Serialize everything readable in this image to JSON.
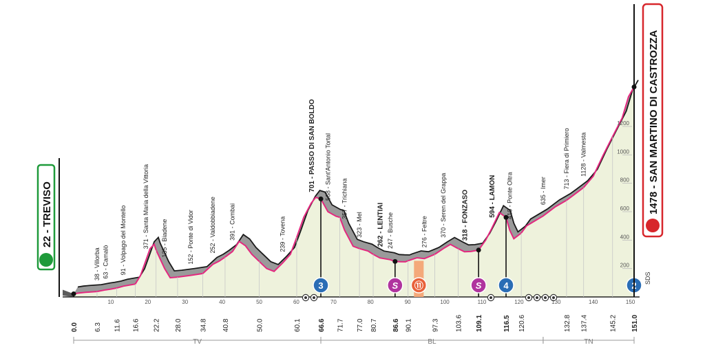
{
  "chart_data": {
    "type": "area",
    "xlabel": "",
    "ylabel": "",
    "xlim": [
      0,
      151
    ],
    "ylim": [
      0,
      1500
    ],
    "start": {
      "name": "TREVISO",
      "label": "22 - TREVISO",
      "km": 0.0,
      "altitude": 22
    },
    "finish": {
      "name": "SAN MARTINO DI CASTROZZA",
      "label": "1478 - SAN MARTINO DI CASTROZZA",
      "km": 151.0,
      "altitude": 1478
    },
    "profile": [
      {
        "x": 0.0,
        "y": 22
      },
      {
        "x": 1.5,
        "y": 28
      },
      {
        "x": 3.0,
        "y": 32
      },
      {
        "x": 6.3,
        "y": 38
      },
      {
        "x": 8.6,
        "y": 50
      },
      {
        "x": 10.0,
        "y": 55
      },
      {
        "x": 11.6,
        "y": 63
      },
      {
        "x": 13.4,
        "y": 76
      },
      {
        "x": 16.6,
        "y": 91
      },
      {
        "x": 18.0,
        "y": 150
      },
      {
        "x": 19.5,
        "y": 260
      },
      {
        "x": 20.6,
        "y": 340
      },
      {
        "x": 21.7,
        "y": 371
      },
      {
        "x": 22.2,
        "y": 330
      },
      {
        "x": 24.5,
        "y": 200
      },
      {
        "x": 26.0,
        "y": 135
      },
      {
        "x": 28.0,
        "y": 140
      },
      {
        "x": 31.5,
        "y": 152
      },
      {
        "x": 34.8,
        "y": 165
      },
      {
        "x": 37.5,
        "y": 230
      },
      {
        "x": 39.2,
        "y": 252
      },
      {
        "x": 40.8,
        "y": 280
      },
      {
        "x": 42.8,
        "y": 320
      },
      {
        "x": 44.6,
        "y": 391
      },
      {
        "x": 46.3,
        "y": 360
      },
      {
        "x": 48.0,
        "y": 300
      },
      {
        "x": 50.0,
        "y": 250
      },
      {
        "x": 52.0,
        "y": 200
      },
      {
        "x": 54.0,
        "y": 180
      },
      {
        "x": 56.3,
        "y": 239
      },
      {
        "x": 58.4,
        "y": 300
      },
      {
        "x": 60.1,
        "y": 420
      },
      {
        "x": 62.0,
        "y": 560
      },
      {
        "x": 64.0,
        "y": 660
      },
      {
        "x": 65.2,
        "y": 701
      },
      {
        "x": 66.6,
        "y": 690
      },
      {
        "x": 68.5,
        "y": 600
      },
      {
        "x": 70.7,
        "y": 568
      },
      {
        "x": 71.7,
        "y": 560
      },
      {
        "x": 73.0,
        "y": 470
      },
      {
        "x": 75.3,
        "y": 357
      },
      {
        "x": 77.0,
        "y": 340
      },
      {
        "x": 79.3,
        "y": 323
      },
      {
        "x": 80.7,
        "y": 300
      },
      {
        "x": 82.5,
        "y": 275
      },
      {
        "x": 85.3,
        "y": 262
      },
      {
        "x": 86.6,
        "y": 250
      },
      {
        "x": 88.0,
        "y": 248
      },
      {
        "x": 89.4,
        "y": 247
      },
      {
        "x": 90.1,
        "y": 255
      },
      {
        "x": 92.5,
        "y": 276
      },
      {
        "x": 94.5,
        "y": 270
      },
      {
        "x": 97.3,
        "y": 300
      },
      {
        "x": 99.6,
        "y": 340
      },
      {
        "x": 101.5,
        "y": 370
      },
      {
        "x": 103.6,
        "y": 340
      },
      {
        "x": 105.3,
        "y": 318
      },
      {
        "x": 107.0,
        "y": 320
      },
      {
        "x": 109.1,
        "y": 330
      },
      {
        "x": 111.0,
        "y": 400
      },
      {
        "x": 112.6,
        "y": 480
      },
      {
        "x": 114.7,
        "y": 594
      },
      {
        "x": 116.5,
        "y": 560
      },
      {
        "x": 117.5,
        "y": 470
      },
      {
        "x": 118.6,
        "y": 410
      },
      {
        "x": 120.6,
        "y": 450
      },
      {
        "x": 122.0,
        "y": 500
      },
      {
        "x": 126.5,
        "y": 570
      },
      {
        "x": 129.8,
        "y": 635
      },
      {
        "x": 132.8,
        "y": 680
      },
      {
        "x": 134.5,
        "y": 713
      },
      {
        "x": 137.4,
        "y": 770
      },
      {
        "x": 140.0,
        "y": 850
      },
      {
        "x": 142.7,
        "y": 1000
      },
      {
        "x": 145.2,
        "y": 1128
      },
      {
        "x": 147.8,
        "y": 1260
      },
      {
        "x": 149.5,
        "y": 1410
      },
      {
        "x": 151.0,
        "y": 1478
      }
    ],
    "places": [
      {
        "km": 6.3,
        "label": "38 - Villorba",
        "bold": false
      },
      {
        "km": 8.6,
        "label": "63 - Camalò",
        "bold": false
      },
      {
        "km": 13.4,
        "label": "91 - Volpago del Montello",
        "bold": false
      },
      {
        "km": 19.5,
        "label": "371 - Santa Maria della Vittoria",
        "bold": false
      },
      {
        "km": 24.5,
        "label": "135 - Biadene",
        "bold": false
      },
      {
        "km": 31.5,
        "label": "152 - Ponte di Vidor",
        "bold": false
      },
      {
        "km": 37.5,
        "label": "252 - Valdobbiadene",
        "bold": false
      },
      {
        "km": 42.8,
        "label": "391 - Combai",
        "bold": false
      },
      {
        "km": 56.3,
        "label": "239 - Tovena",
        "bold": false
      },
      {
        "km": 64.0,
        "label": "701 - PASSO DI SAN BOLDO",
        "bold": true
      },
      {
        "km": 68.5,
        "label": "568 - Sant'Antonio Tortal",
        "bold": false
      },
      {
        "km": 73.0,
        "label": "357 - Trichiana",
        "bold": false
      },
      {
        "km": 77.0,
        "label": "323 - Mel",
        "bold": false
      },
      {
        "km": 82.5,
        "label": "262 - LENTIAI",
        "bold": true
      },
      {
        "km": 85.3,
        "label": "247 - Busche",
        "bold": false
      },
      {
        "km": 94.5,
        "label": "276 - Feltre",
        "bold": false
      },
      {
        "km": 99.6,
        "label": "370 - Seren del Grappa",
        "bold": false
      },
      {
        "km": 105.3,
        "label": "318 - FONZASO",
        "bold": true
      },
      {
        "km": 112.6,
        "label": "594 - LAMON",
        "bold": true
      },
      {
        "km": 117.5,
        "label": "410 - Ponte Oltra",
        "bold": false
      },
      {
        "km": 126.5,
        "label": "635 - Imer",
        "bold": false
      },
      {
        "km": 132.8,
        "label": "713 - Fiera di Primiero",
        "bold": false
      },
      {
        "km": 137.4,
        "label": "1128 - Valmesta",
        "bold": false
      }
    ],
    "km_ticks": [
      {
        "km": 0.0,
        "label": "0.0",
        "bold": true
      },
      {
        "km": 6.3,
        "label": "6.3",
        "bold": false
      },
      {
        "km": 11.6,
        "label": "11.6",
        "bold": false
      },
      {
        "km": 16.6,
        "label": "16.6",
        "bold": false
      },
      {
        "km": 22.2,
        "label": "22.2",
        "bold": false
      },
      {
        "km": 28.0,
        "label": "28.0",
        "bold": false
      },
      {
        "km": 34.8,
        "label": "34.8",
        "bold": false
      },
      {
        "km": 40.8,
        "label": "40.8",
        "bold": false
      },
      {
        "km": 50.0,
        "label": "50.0",
        "bold": false
      },
      {
        "km": 60.1,
        "label": "60.1",
        "bold": false
      },
      {
        "km": 66.6,
        "label": "66.6",
        "bold": true
      },
      {
        "km": 71.7,
        "label": "71.7",
        "bold": false
      },
      {
        "km": 77.0,
        "label": "77.0",
        "bold": false
      },
      {
        "km": 80.7,
        "label": "80.7",
        "bold": false
      },
      {
        "km": 86.6,
        "label": "86.6",
        "bold": true
      },
      {
        "km": 90.1,
        "label": "90.1",
        "bold": false
      },
      {
        "km": 97.3,
        "label": "97.3",
        "bold": false
      },
      {
        "km": 103.6,
        "label": "103.6",
        "bold": false
      },
      {
        "km": 109.1,
        "label": "109.1",
        "bold": true
      },
      {
        "km": 116.5,
        "label": "116.5",
        "bold": true
      },
      {
        "km": 120.6,
        "label": "120.6",
        "bold": false
      },
      {
        "km": 132.8,
        "label": "132.8",
        "bold": false
      },
      {
        "km": 137.4,
        "label": "137.4",
        "bold": false
      },
      {
        "km": 145.2,
        "label": "145.2",
        "bold": false
      },
      {
        "km": 151.0,
        "label": "151.0",
        "bold": true
      }
    ],
    "scale_ticks": [
      10,
      20,
      30,
      40,
      50,
      60,
      70,
      80,
      90,
      100,
      110,
      120,
      130,
      140,
      150
    ],
    "alt_ticks": [
      200,
      400,
      600,
      800,
      1000,
      1200
    ],
    "regions": [
      {
        "name": "TV",
        "from": 0.0,
        "to": 66.6
      },
      {
        "name": "BL",
        "from": 66.6,
        "to": 126.5
      },
      {
        "name": "TN",
        "from": 126.5,
        "to": 151.0
      }
    ],
    "markers": [
      {
        "km": 66.6,
        "kind": "kom",
        "label": "3"
      },
      {
        "km": 86.6,
        "kind": "sprint",
        "label": "S"
      },
      {
        "km": 93.0,
        "kind": "feed",
        "label": "⑪"
      },
      {
        "km": 109.1,
        "kind": "sprint",
        "label": "S"
      },
      {
        "km": 116.5,
        "kind": "kom",
        "label": "4"
      },
      {
        "km": 151.0,
        "kind": "kom",
        "label": "2"
      }
    ],
    "feed_zone": {
      "from": 91.7,
      "to": 94.3
    },
    "sds_label": "SDS",
    "colors": {
      "profile_top": "#9a9a9a",
      "profile_side": "#5c5c5c",
      "fill": "#eef2dc",
      "pink": "#e4287f",
      "kom": "#2a6db5",
      "sprint": "#b0349e",
      "feed": "#f4a97a",
      "start": "#1e9a3a",
      "finish": "#d7262b"
    }
  }
}
